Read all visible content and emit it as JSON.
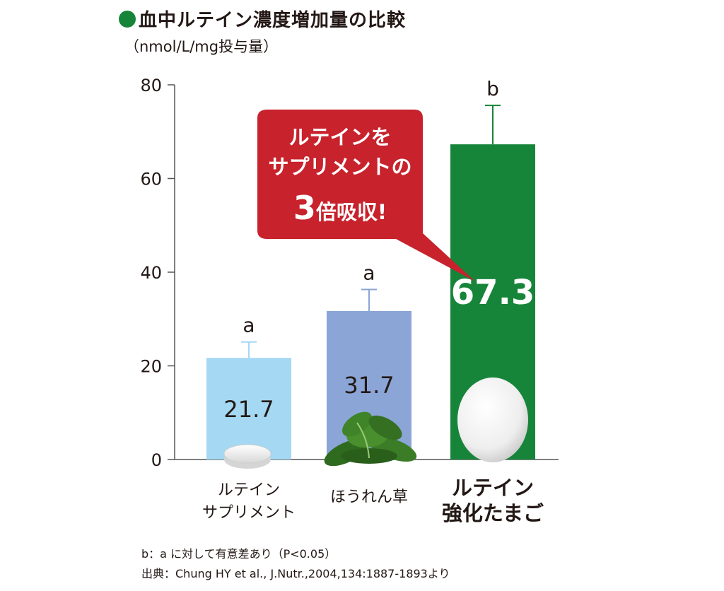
{
  "header": {
    "title": "血中ルテイン濃度増加量の比較",
    "unit": "（nmol/L/mg投与量）"
  },
  "chart_data": {
    "type": "bar",
    "title": "血中ルテイン濃度増加量の比較",
    "ylabel": "（nmol/L/mg投与量）",
    "ylim": [
      0,
      80
    ],
    "yticks": [
      0,
      20,
      40,
      60,
      80
    ],
    "grid": false,
    "categories": [
      "ルテイン\nサプリメント",
      "ほうれん草",
      "ルテイン\n強化たまご"
    ],
    "category_lines": [
      [
        "ルテイン",
        "サプリメント"
      ],
      [
        "ほうれん草"
      ],
      [
        "ルテイン",
        "強化たまご"
      ]
    ],
    "values": [
      21.7,
      31.7,
      67.3
    ],
    "value_labels": [
      "21.7",
      "31.7",
      "67.3"
    ],
    "error_upper": [
      25.1,
      36.3,
      75.6
    ],
    "significance": [
      "a",
      "a",
      "b"
    ],
    "colors": [
      "#a4d8f3",
      "#8aa5d6",
      "#16853a"
    ]
  },
  "callout": {
    "line1": "ルテインを",
    "line2": "サプリメントの",
    "big": "3",
    "line3_rest": "倍吸収!",
    "color": "#c8222c"
  },
  "notes": {
    "significance_note": "b：a に対して有意差あり（P<0.05）",
    "source": "出典：Chung HY et al., J.Nutr.,2004,134:1887-1893より"
  },
  "icons": [
    "tablet-icon",
    "spinach-icon",
    "egg-icon"
  ]
}
